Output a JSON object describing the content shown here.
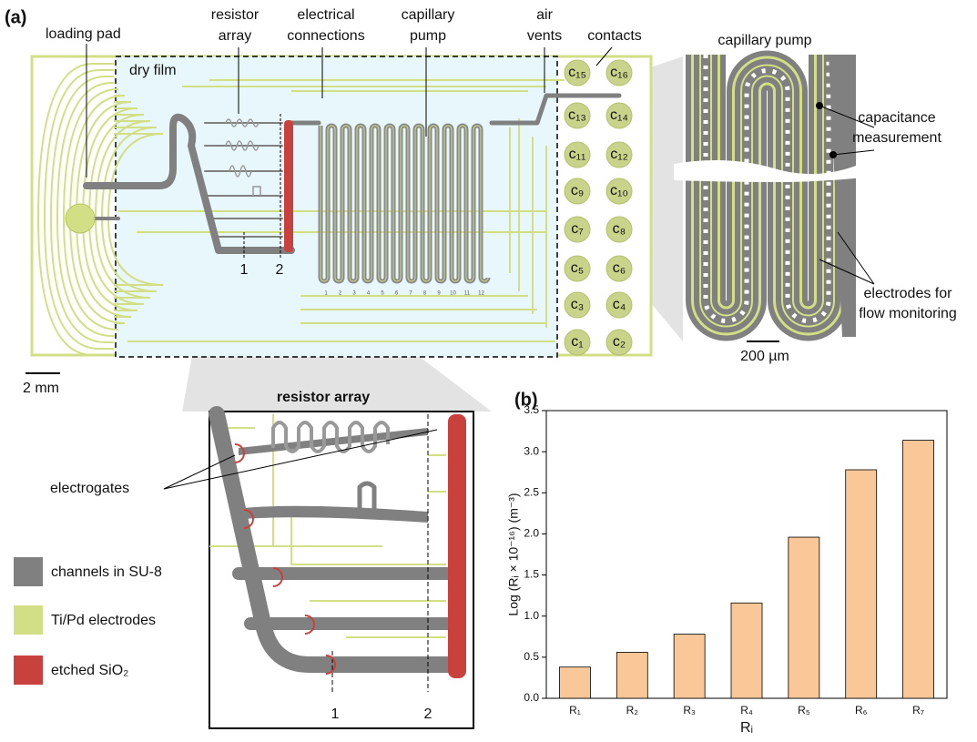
{
  "panel_a": {
    "label": "(a)",
    "callouts": {
      "loading_pad": "loading pad",
      "resistor_array": [
        "resistor",
        "array"
      ],
      "electrical_connections": [
        "electrical",
        "connections"
      ],
      "capillary_pump": [
        "capillary",
        "pump"
      ],
      "air_vents": [
        "air",
        "vents"
      ],
      "contacts": "contacts"
    },
    "dry_film": "dry film",
    "contacts": [
      "c₁₅",
      "c₁₆",
      "c₁₃",
      "c₁₄",
      "c₁₁",
      "c₁₂",
      "c₉",
      "c₁₀",
      "c₇",
      "c₈",
      "c₅",
      "c₆",
      "c₃",
      "c₄",
      "c₁",
      "c₂"
    ],
    "pump_numbers": [
      "1",
      "2",
      "3",
      "4",
      "5",
      "6",
      "7",
      "8",
      "9",
      "10",
      "11",
      "12"
    ],
    "markers": [
      "1",
      "2"
    ],
    "scale_bar": "2 mm",
    "detail": {
      "title": "capillary pump",
      "capacitance": [
        "capacitance",
        "measurement"
      ],
      "electrodes": [
        "electrodes for",
        "flow monitoring"
      ],
      "scale_bar": "200 µm"
    },
    "inset": {
      "title": "resistor array",
      "electrogates": "electrogates",
      "markers": [
        "1",
        "2"
      ]
    },
    "legend": [
      "channels in SU-8",
      "Ti/Pd electrodes",
      "etched SiO₂"
    ]
  },
  "chart_data": {
    "type": "bar",
    "panel_label": "(b)",
    "categories": [
      "R₁",
      "R₂",
      "R₃",
      "R₄",
      "R₅",
      "R₆",
      "R₇"
    ],
    "values": [
      0.38,
      0.56,
      0.78,
      1.16,
      1.96,
      2.78,
      3.14
    ],
    "color": "#fac898",
    "x_label": "Rᵢ",
    "y_label": "Log (Rᵢ × 10⁻¹⁶) (m⁻³)",
    "ylim": [
      0,
      3.5
    ],
    "yticks": [
      {
        "value": 0,
        "label": "0.0"
      },
      0.5,
      {
        "value": 1,
        "label": "1.0"
      },
      1.5,
      {
        "value": 2,
        "label": "2.0"
      },
      2.5,
      {
        "value": 3,
        "label": "3.0"
      },
      3.5
    ]
  }
}
